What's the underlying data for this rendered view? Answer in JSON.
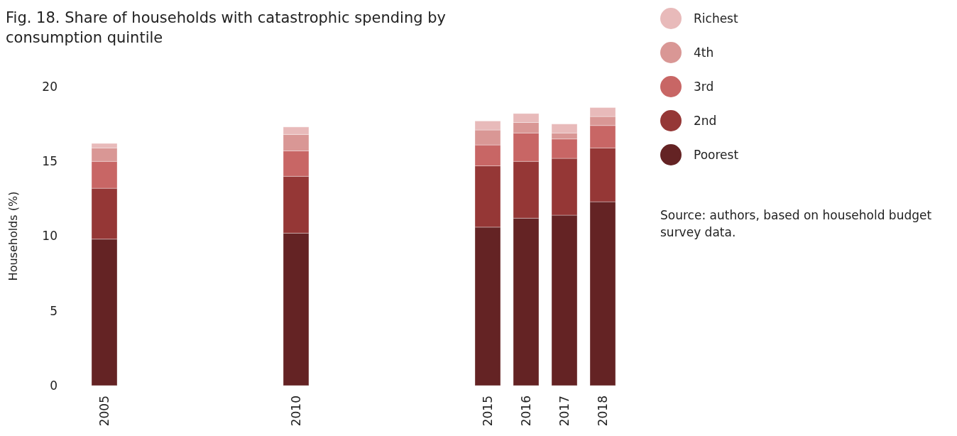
{
  "chart_data": {
    "type": "bar",
    "title": "Fig. 18. Share of households with catastrophic spending by consumption quintile",
    "ylabel": "Households (%)",
    "x": [
      2005,
      2010,
      2015,
      2016,
      2017,
      2018
    ],
    "xlim": [
      2005,
      2018
    ],
    "xticks": [
      2005,
      2010,
      2015,
      2016,
      2017,
      2018
    ],
    "ylim": [
      0,
      20
    ],
    "yticks": [
      0,
      5,
      10,
      15,
      20
    ],
    "stacked": true,
    "grid": false,
    "legend": "right",
    "annotations": [
      "Source: authors, based on household budget survey data."
    ],
    "series": [
      {
        "name": "Poorest",
        "color": "#642324",
        "values": [
          9.8,
          10.2,
          10.6,
          11.2,
          11.4,
          12.3
        ]
      },
      {
        "name": "2nd",
        "color": "#953736",
        "values": [
          3.4,
          3.8,
          4.1,
          3.8,
          3.8,
          3.6
        ]
      },
      {
        "name": "3rd",
        "color": "#c86665",
        "values": [
          1.8,
          1.7,
          1.4,
          1.9,
          1.3,
          1.5
        ]
      },
      {
        "name": "4th",
        "color": "#d99795",
        "values": [
          0.9,
          1.1,
          1.0,
          0.7,
          0.4,
          0.6
        ]
      },
      {
        "name": "Richest",
        "color": "#e8baba",
        "values": [
          0.3,
          0.5,
          0.6,
          0.6,
          0.6,
          0.6
        ]
      }
    ]
  }
}
